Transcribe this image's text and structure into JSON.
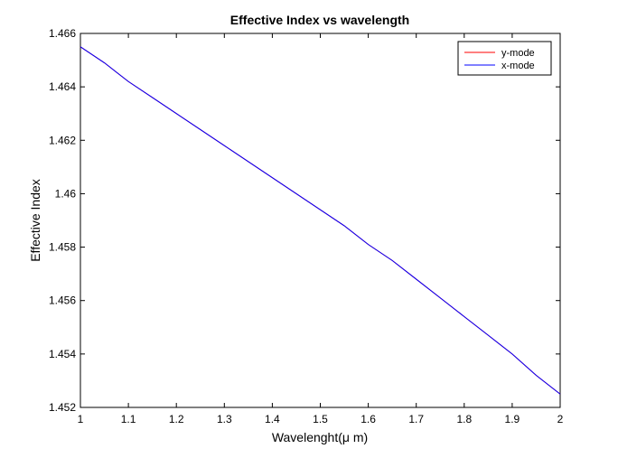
{
  "chart_data": {
    "type": "line",
    "title": "Effective Index vs wavelength",
    "xlabel": "Wavelenght(μ m)",
    "ylabel": "Effective Index",
    "xlim": [
      1,
      2
    ],
    "ylim": [
      1.452,
      1.466
    ],
    "xticks": [
      1,
      1.1,
      1.2,
      1.3,
      1.4,
      1.5,
      1.6,
      1.7,
      1.8,
      1.9,
      2
    ],
    "xtick_labels": [
      "1",
      "1.1",
      "1.2",
      "1.3",
      "1.4",
      "1.5",
      "1.6",
      "1.7",
      "1.8",
      "1.9",
      "2"
    ],
    "yticks": [
      1.452,
      1.454,
      1.456,
      1.458,
      1.46,
      1.462,
      1.464,
      1.466
    ],
    "ytick_labels": [
      "1.452",
      "1.454",
      "1.456",
      "1.458",
      "1.46",
      "1.462",
      "1.464",
      "1.466"
    ],
    "grid": false,
    "legend_position": "top-right",
    "x": [
      1.0,
      1.05,
      1.1,
      1.15,
      1.2,
      1.25,
      1.3,
      1.35,
      1.4,
      1.45,
      1.5,
      1.55,
      1.6,
      1.65,
      1.7,
      1.75,
      1.8,
      1.85,
      1.9,
      1.95,
      2.0
    ],
    "series": [
      {
        "name": "y-mode",
        "color": "#ff0000",
        "values": [
          1.4655,
          1.4649,
          1.4642,
          1.4636,
          1.463,
          1.4624,
          1.4618,
          1.4612,
          1.4606,
          1.46,
          1.4594,
          1.4588,
          1.4581,
          1.4575,
          1.4568,
          1.4561,
          1.4554,
          1.4547,
          1.454,
          1.4532,
          1.4525
        ]
      },
      {
        "name": "x-mode",
        "color": "#0000ff",
        "values": [
          1.4655,
          1.4649,
          1.4642,
          1.4636,
          1.463,
          1.4624,
          1.4618,
          1.4612,
          1.4606,
          1.46,
          1.4594,
          1.4588,
          1.4581,
          1.4575,
          1.4568,
          1.4561,
          1.4554,
          1.4547,
          1.454,
          1.4532,
          1.4525
        ]
      }
    ]
  }
}
